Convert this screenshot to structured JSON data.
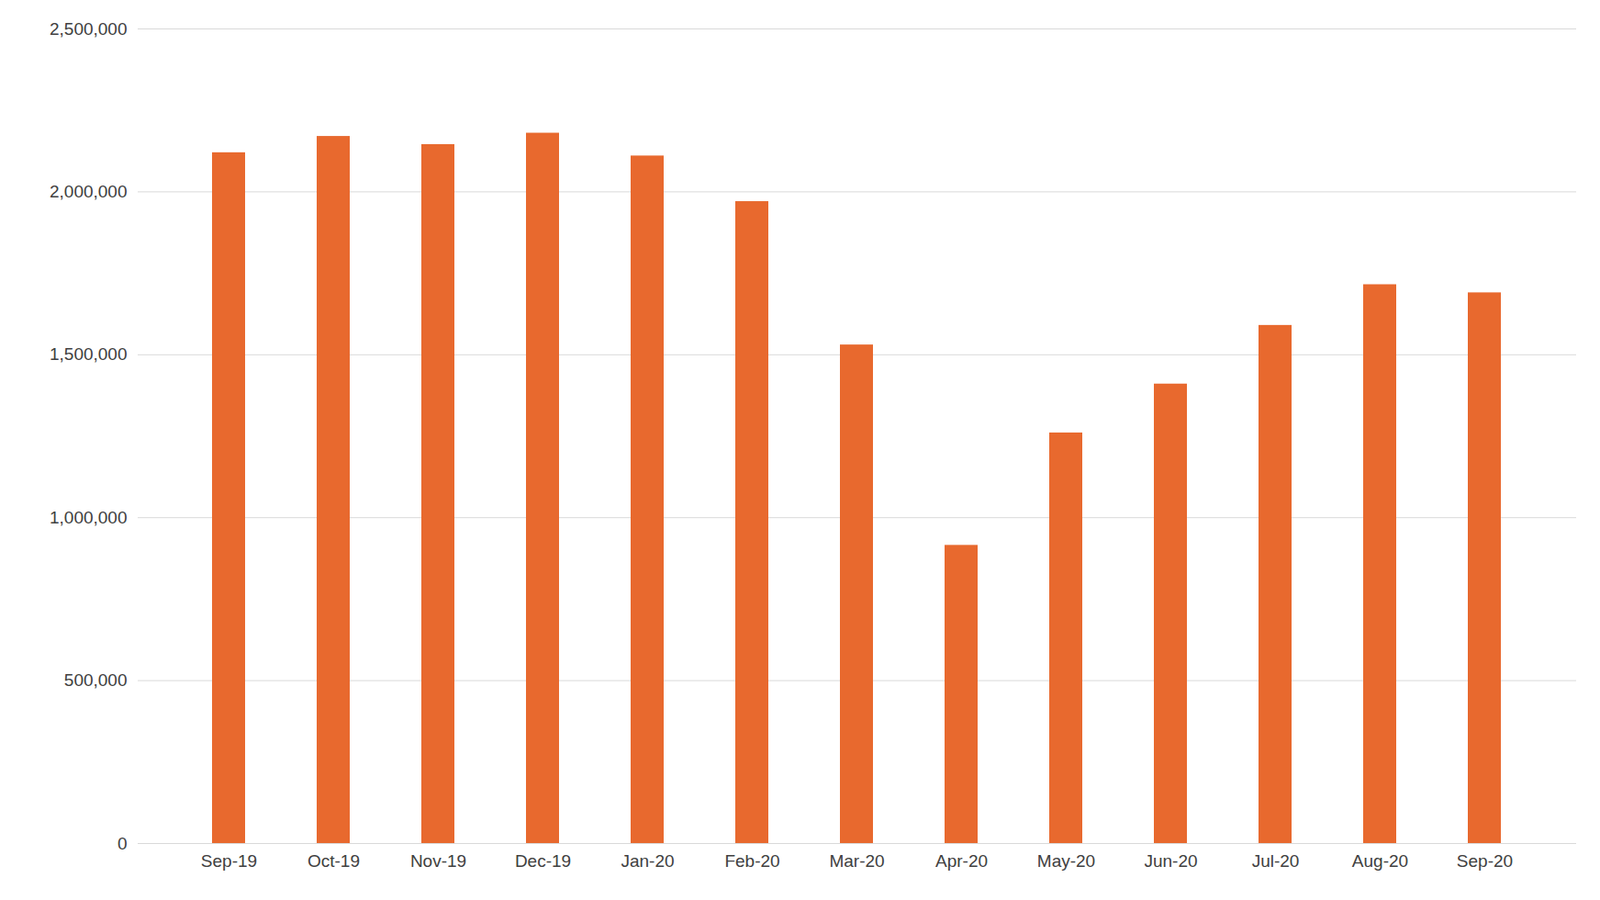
{
  "chart_data": {
    "type": "bar",
    "categories": [
      "Sep-19",
      "Oct-19",
      "Nov-19",
      "Dec-19",
      "Jan-20",
      "Feb-20",
      "Mar-20",
      "Apr-20",
      "May-20",
      "Jun-20",
      "Jul-20",
      "Aug-20",
      "Sep-20"
    ],
    "values": [
      2120000,
      2170000,
      2145000,
      2180000,
      2110000,
      1970000,
      1530000,
      915000,
      1260000,
      1410000,
      1590000,
      1715000,
      1690000
    ],
    "color": "#e8692e",
    "ylim": [
      0,
      2500000
    ],
    "yticks": [
      0,
      {
        "value": 500000,
        "label": "500,000"
      },
      {
        "value": 1000000,
        "label": "1,000,000"
      },
      {
        "value": 1500000,
        "label": "1,500,000"
      },
      {
        "value": 2000000,
        "label": "2,000,000"
      },
      {
        "value": 2500000,
        "label": "2,500,000"
      }
    ],
    "grid": true
  }
}
